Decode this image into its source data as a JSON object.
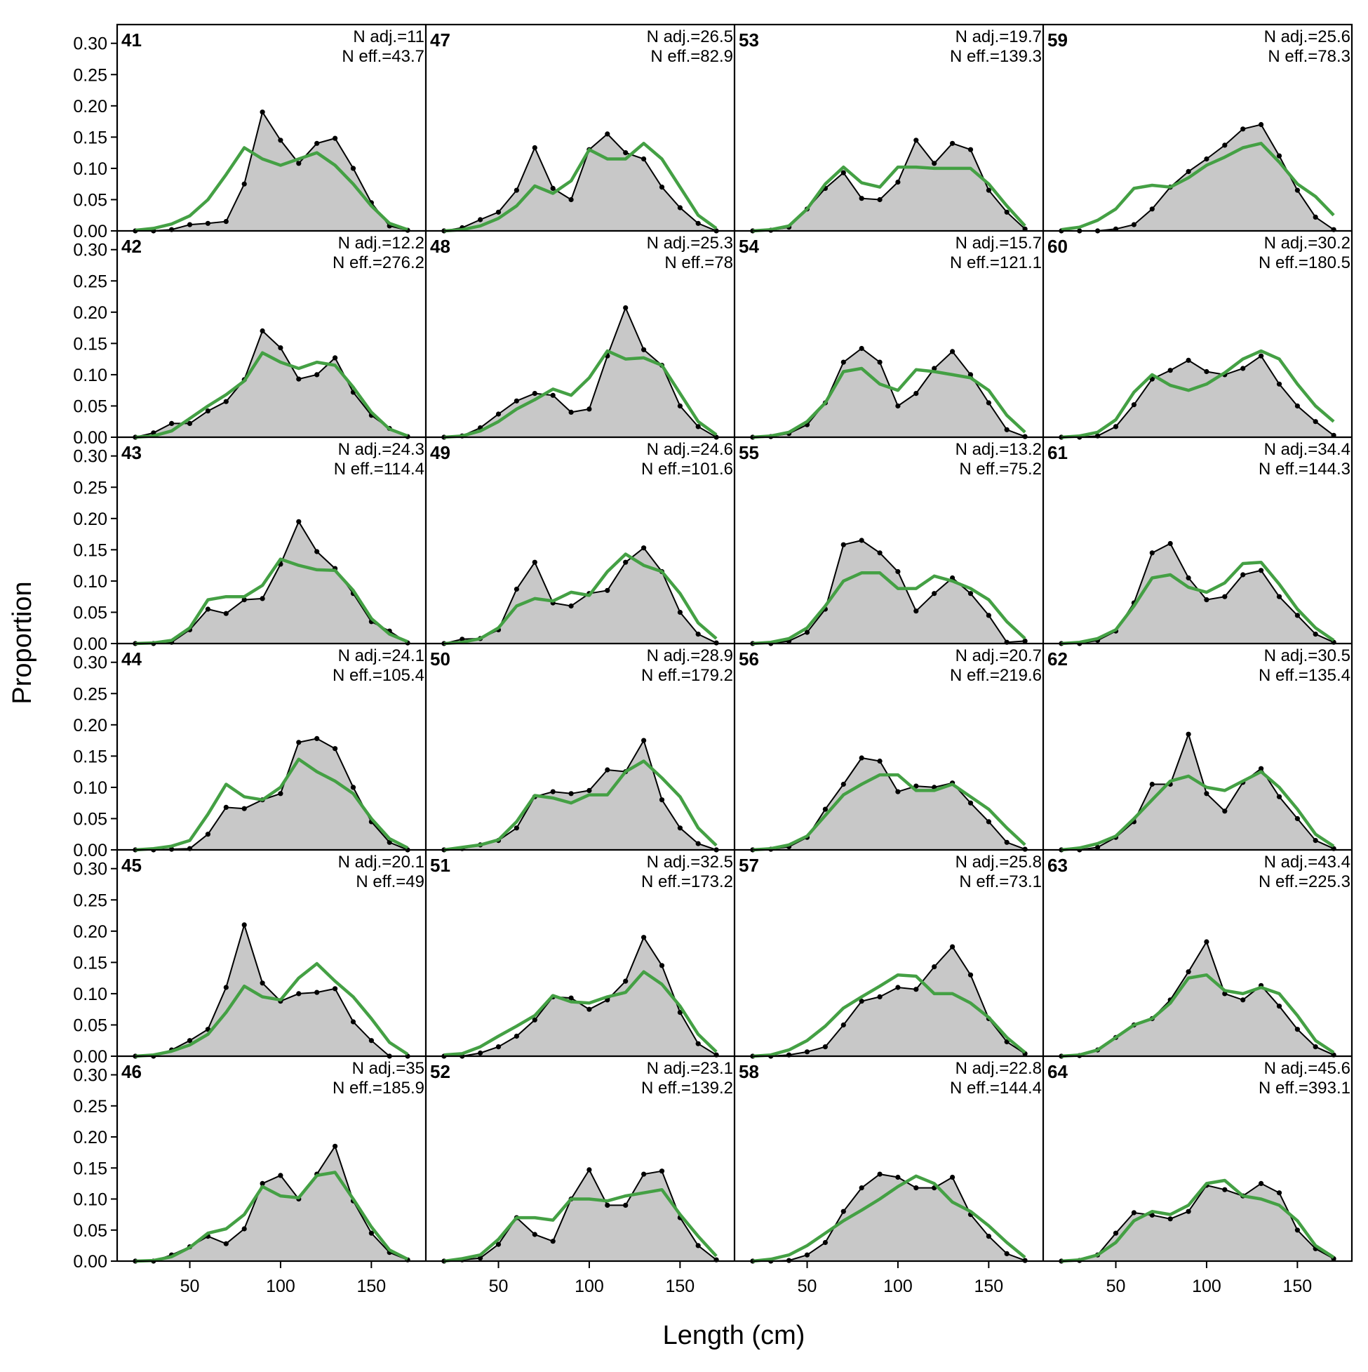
{
  "chart_data": {
    "type": "area",
    "xlabel": "Length (cm)",
    "ylabel": "Proportion",
    "xlim": [
      10,
      180
    ],
    "ylim": [
      0,
      0.33
    ],
    "x_ticks": [
      50,
      100,
      150
    ],
    "y_ticks": [
      0.0,
      0.05,
      0.1,
      0.15,
      0.2,
      0.25,
      0.3
    ],
    "y_tick_labels": [
      "0.00",
      "0.05",
      "0.10",
      "0.15",
      "0.20",
      "0.25",
      "0.30"
    ],
    "x_tick_labels": [
      "50",
      "100",
      "150"
    ],
    "layout": {
      "columns": 4,
      "rows": 6
    },
    "colors": {
      "observed_fill": "#c8c8c8",
      "observed_line": "#000000",
      "expected_line": "#44a044",
      "baseline": "#a8a8a8"
    },
    "x": [
      20,
      30,
      40,
      50,
      60,
      70,
      80,
      90,
      100,
      110,
      120,
      130,
      140,
      150,
      160,
      170
    ],
    "panels": [
      {
        "id": "41",
        "n_adj": "N adj.=11",
        "n_eff": "N eff.=43.7",
        "observed": [
          0,
          0,
          0.002,
          0.01,
          0.012,
          0.015,
          0.075,
          0.19,
          0.145,
          0.108,
          0.14,
          0.148,
          0.1,
          0.045,
          0.008,
          0.001
        ],
        "expected": [
          0.001,
          0.004,
          0.011,
          0.024,
          0.05,
          0.09,
          0.133,
          0.115,
          0.105,
          0.115,
          0.125,
          0.105,
          0.075,
          0.04,
          0.012,
          0.002
        ]
      },
      {
        "id": "42",
        "n_adj": "N adj.=12.2",
        "n_eff": "N eff.=276.2",
        "observed": [
          0.0,
          0.007,
          0.022,
          0.022,
          0.042,
          0.057,
          0.092,
          0.17,
          0.143,
          0.093,
          0.1,
          0.127,
          0.072,
          0.035,
          0.014,
          0.001
        ],
        "expected": [
          0.0,
          0.002,
          0.01,
          0.03,
          0.05,
          0.068,
          0.09,
          0.135,
          0.12,
          0.11,
          0.12,
          0.115,
          0.08,
          0.04,
          0.013,
          0.002
        ]
      },
      {
        "id": "43",
        "n_adj": "N adj.=24.3",
        "n_eff": "N eff.=114.4",
        "observed": [
          0.0,
          0.0,
          0.002,
          0.022,
          0.055,
          0.048,
          0.07,
          0.072,
          0.127,
          0.195,
          0.147,
          0.12,
          0.08,
          0.035,
          0.02,
          0.001
        ],
        "expected": [
          0.0,
          0.001,
          0.005,
          0.025,
          0.07,
          0.075,
          0.075,
          0.093,
          0.135,
          0.125,
          0.118,
          0.117,
          0.085,
          0.04,
          0.015,
          0.003
        ]
      },
      {
        "id": "44",
        "n_adj": "N adj.=24.1",
        "n_eff": "N eff.=105.4",
        "observed": [
          0.0,
          0.0,
          0.001,
          0.002,
          0.025,
          0.068,
          0.066,
          0.08,
          0.09,
          0.172,
          0.178,
          0.162,
          0.1,
          0.045,
          0.012,
          0.0
        ],
        "expected": [
          0.0,
          0.002,
          0.006,
          0.015,
          0.057,
          0.105,
          0.085,
          0.08,
          0.1,
          0.145,
          0.125,
          0.11,
          0.09,
          0.05,
          0.018,
          0.003
        ]
      },
      {
        "id": "45",
        "n_adj": "N adj.=20.1",
        "n_eff": "N eff.=49",
        "observed": [
          0.0,
          0.0,
          0.01,
          0.025,
          0.043,
          0.11,
          0.21,
          0.117,
          0.088,
          0.1,
          0.102,
          0.108,
          0.055,
          0.025,
          0.0,
          0.0
        ],
        "expected": [
          0.0,
          0.002,
          0.008,
          0.018,
          0.035,
          0.07,
          0.112,
          0.095,
          0.09,
          0.125,
          0.148,
          0.12,
          0.095,
          0.06,
          0.022,
          0.003
        ]
      },
      {
        "id": "46",
        "n_adj": "N adj.=35",
        "n_eff": "N eff.=185.9",
        "observed": [
          0.0,
          0.0,
          0.01,
          0.023,
          0.04,
          0.028,
          0.052,
          0.125,
          0.138,
          0.1,
          0.14,
          0.185,
          0.097,
          0.045,
          0.014,
          0.002
        ],
        "expected": [
          0.0,
          0.001,
          0.007,
          0.022,
          0.045,
          0.052,
          0.075,
          0.12,
          0.105,
          0.102,
          0.138,
          0.143,
          0.1,
          0.055,
          0.018,
          0.003
        ]
      },
      {
        "id": "47",
        "n_adj": "N adj.=26.5",
        "n_eff": "N eff.=82.9",
        "observed": [
          0.0,
          0.005,
          0.018,
          0.03,
          0.065,
          0.133,
          0.068,
          0.05,
          0.13,
          0.155,
          0.125,
          0.115,
          0.07,
          0.037,
          0.012,
          0.0
        ],
        "expected": [
          0.0,
          0.002,
          0.008,
          0.02,
          0.04,
          0.072,
          0.06,
          0.08,
          0.13,
          0.115,
          0.115,
          0.14,
          0.115,
          0.07,
          0.025,
          0.004
        ]
      },
      {
        "id": "48",
        "n_adj": "N adj.=25.3",
        "n_eff": "N eff.=78",
        "observed": [
          0.0,
          0.002,
          0.015,
          0.037,
          0.058,
          0.07,
          0.067,
          0.04,
          0.045,
          0.13,
          0.207,
          0.14,
          0.115,
          0.05,
          0.017,
          0.0
        ],
        "expected": [
          0.0,
          0.002,
          0.01,
          0.025,
          0.045,
          0.06,
          0.077,
          0.067,
          0.095,
          0.138,
          0.125,
          0.127,
          0.115,
          0.07,
          0.025,
          0.004
        ]
      },
      {
        "id": "49",
        "n_adj": "N adj.=24.6",
        "n_eff": "N eff.=101.6",
        "observed": [
          0.0,
          0.007,
          0.008,
          0.022,
          0.087,
          0.13,
          0.065,
          0.06,
          0.08,
          0.085,
          0.13,
          0.153,
          0.115,
          0.05,
          0.015,
          0.001
        ],
        "expected": [
          0.0,
          0.002,
          0.008,
          0.025,
          0.06,
          0.072,
          0.068,
          0.082,
          0.077,
          0.115,
          0.143,
          0.125,
          0.115,
          0.08,
          0.033,
          0.008
        ]
      },
      {
        "id": "50",
        "n_adj": "N adj.=28.9",
        "n_eff": "N eff.=179.2",
        "observed": [
          0.0,
          0.002,
          0.008,
          0.015,
          0.035,
          0.085,
          0.093,
          0.09,
          0.095,
          0.128,
          0.125,
          0.175,
          0.08,
          0.035,
          0.01,
          0.0
        ],
        "expected": [
          0.0,
          0.004,
          0.008,
          0.016,
          0.045,
          0.087,
          0.083,
          0.075,
          0.088,
          0.088,
          0.125,
          0.142,
          0.115,
          0.085,
          0.035,
          0.007
        ]
      },
      {
        "id": "51",
        "n_adj": "N adj.=32.5",
        "n_eff": "N eff.=173.2",
        "observed": [
          0.0,
          0.0,
          0.005,
          0.015,
          0.032,
          0.058,
          0.095,
          0.093,
          0.075,
          0.09,
          0.12,
          0.19,
          0.145,
          0.07,
          0.02,
          0.002
        ],
        "expected": [
          0.002,
          0.004,
          0.015,
          0.032,
          0.048,
          0.065,
          0.097,
          0.087,
          0.085,
          0.095,
          0.102,
          0.135,
          0.115,
          0.08,
          0.035,
          0.007
        ]
      },
      {
        "id": "52",
        "n_adj": "N adj.=23.1",
        "n_eff": "N eff.=139.2",
        "observed": [
          0.0,
          0.002,
          0.005,
          0.027,
          0.07,
          0.043,
          0.032,
          0.1,
          0.147,
          0.09,
          0.09,
          0.14,
          0.145,
          0.07,
          0.025,
          0.002
        ],
        "expected": [
          0.0,
          0.004,
          0.01,
          0.035,
          0.07,
          0.07,
          0.066,
          0.1,
          0.1,
          0.097,
          0.105,
          0.11,
          0.115,
          0.075,
          0.04,
          0.008
        ]
      },
      {
        "id": "53",
        "n_adj": "N adj.=19.7",
        "n_eff": "N eff.=139.3",
        "observed": [
          0.0,
          0.001,
          0.006,
          0.035,
          0.068,
          0.093,
          0.052,
          0.05,
          0.078,
          0.145,
          0.108,
          0.14,
          0.13,
          0.065,
          0.03,
          0.003
        ],
        "expected": [
          0.0,
          0.002,
          0.008,
          0.035,
          0.075,
          0.102,
          0.077,
          0.07,
          0.102,
          0.102,
          0.1,
          0.1,
          0.1,
          0.075,
          0.04,
          0.008
        ]
      },
      {
        "id": "54",
        "n_adj": "N adj.=15.7",
        "n_eff": "N eff.=121.1",
        "observed": [
          0.0,
          0.001,
          0.006,
          0.02,
          0.055,
          0.12,
          0.142,
          0.12,
          0.05,
          0.07,
          0.11,
          0.137,
          0.1,
          0.055,
          0.012,
          0.001
        ],
        "expected": [
          0.0,
          0.002,
          0.008,
          0.025,
          0.055,
          0.105,
          0.11,
          0.085,
          0.075,
          0.108,
          0.105,
          0.1,
          0.095,
          0.075,
          0.035,
          0.008
        ]
      },
      {
        "id": "55",
        "n_adj": "N adj.=13.2",
        "n_eff": "N eff.=75.2",
        "observed": [
          0.0,
          0.0,
          0.004,
          0.018,
          0.055,
          0.158,
          0.165,
          0.145,
          0.115,
          0.052,
          0.08,
          0.105,
          0.08,
          0.045,
          0.002,
          0.004
        ],
        "expected": [
          0.0,
          0.002,
          0.008,
          0.025,
          0.06,
          0.1,
          0.113,
          0.113,
          0.088,
          0.088,
          0.108,
          0.1,
          0.088,
          0.07,
          0.035,
          0.008
        ]
      },
      {
        "id": "56",
        "n_adj": "N adj.=20.7",
        "n_eff": "N eff.=219.6",
        "observed": [
          0.0,
          0.001,
          0.005,
          0.02,
          0.065,
          0.105,
          0.147,
          0.142,
          0.093,
          0.102,
          0.1,
          0.107,
          0.075,
          0.045,
          0.012,
          0.001
        ],
        "expected": [
          0.0,
          0.002,
          0.008,
          0.022,
          0.055,
          0.088,
          0.105,
          0.12,
          0.12,
          0.095,
          0.095,
          0.105,
          0.085,
          0.065,
          0.035,
          0.008
        ]
      },
      {
        "id": "57",
        "n_adj": "N adj.=25.8",
        "n_eff": "N eff.=73.1",
        "observed": [
          0.0,
          0.0,
          0.002,
          0.007,
          0.015,
          0.05,
          0.088,
          0.095,
          0.11,
          0.107,
          0.143,
          0.175,
          0.13,
          0.06,
          0.023,
          0.004
        ],
        "expected": [
          0.0,
          0.002,
          0.01,
          0.025,
          0.048,
          0.077,
          0.095,
          0.112,
          0.13,
          0.128,
          0.1,
          0.1,
          0.085,
          0.062,
          0.03,
          0.006
        ]
      },
      {
        "id": "58",
        "n_adj": "N adj.=22.8",
        "n_eff": "N eff.=144.4",
        "observed": [
          0.0,
          0.0,
          0.001,
          0.01,
          0.03,
          0.08,
          0.118,
          0.14,
          0.135,
          0.118,
          0.118,
          0.135,
          0.075,
          0.04,
          0.012,
          0.001
        ],
        "expected": [
          0.0,
          0.003,
          0.01,
          0.025,
          0.045,
          0.065,
          0.082,
          0.1,
          0.12,
          0.137,
          0.125,
          0.095,
          0.08,
          0.057,
          0.03,
          0.006
        ]
      },
      {
        "id": "59",
        "n_adj": "N adj.=25.6",
        "n_eff": "N eff.=78.3",
        "observed": [
          0.0,
          0.0,
          0.0,
          0.003,
          0.01,
          0.035,
          0.07,
          0.095,
          0.115,
          0.137,
          0.163,
          0.17,
          0.12,
          0.065,
          0.022,
          0.002
        ],
        "expected": [
          0.002,
          0.006,
          0.017,
          0.035,
          0.068,
          0.073,
          0.07,
          0.085,
          0.105,
          0.118,
          0.133,
          0.14,
          0.11,
          0.075,
          0.055,
          0.025
        ]
      },
      {
        "id": "60",
        "n_adj": "N adj.=30.2",
        "n_eff": "N eff.=180.5",
        "observed": [
          0.0,
          0.0,
          0.002,
          0.017,
          0.052,
          0.093,
          0.107,
          0.123,
          0.105,
          0.1,
          0.11,
          0.13,
          0.085,
          0.05,
          0.025,
          0.003
        ],
        "expected": [
          0.0,
          0.002,
          0.008,
          0.028,
          0.072,
          0.1,
          0.083,
          0.075,
          0.085,
          0.103,
          0.125,
          0.138,
          0.125,
          0.085,
          0.05,
          0.025
        ]
      },
      {
        "id": "61",
        "n_adj": "N adj.=34.4",
        "n_eff": "N eff.=144.3",
        "observed": [
          0.0,
          0.0,
          0.005,
          0.02,
          0.065,
          0.145,
          0.16,
          0.105,
          0.07,
          0.075,
          0.11,
          0.117,
          0.075,
          0.045,
          0.015,
          0.002
        ],
        "expected": [
          0.0,
          0.002,
          0.008,
          0.022,
          0.06,
          0.105,
          0.11,
          0.09,
          0.082,
          0.097,
          0.128,
          0.13,
          0.095,
          0.055,
          0.025,
          0.005
        ]
      },
      {
        "id": "62",
        "n_adj": "N adj.=30.5",
        "n_eff": "N eff.=135.4",
        "observed": [
          0.0,
          0.0,
          0.004,
          0.02,
          0.045,
          0.105,
          0.105,
          0.185,
          0.09,
          0.062,
          0.108,
          0.13,
          0.085,
          0.05,
          0.015,
          0.002
        ],
        "expected": [
          0.0,
          0.003,
          0.01,
          0.022,
          0.05,
          0.08,
          0.11,
          0.118,
          0.1,
          0.095,
          0.11,
          0.125,
          0.1,
          0.065,
          0.025,
          0.006
        ]
      },
      {
        "id": "63",
        "n_adj": "N adj.=43.4",
        "n_eff": "N eff.=225.3",
        "observed": [
          0.0,
          0.001,
          0.01,
          0.03,
          0.05,
          0.06,
          0.09,
          0.135,
          0.183,
          0.1,
          0.09,
          0.113,
          0.08,
          0.043,
          0.015,
          0.002
        ],
        "expected": [
          0.0,
          0.002,
          0.01,
          0.03,
          0.05,
          0.06,
          0.085,
          0.125,
          0.13,
          0.105,
          0.1,
          0.11,
          0.1,
          0.065,
          0.025,
          0.006
        ]
      },
      {
        "id": "64",
        "n_adj": "N adj.=45.6",
        "n_eff": "N eff.=393.1",
        "observed": [
          0.0,
          0.001,
          0.01,
          0.045,
          0.078,
          0.074,
          0.068,
          0.08,
          0.122,
          0.115,
          0.105,
          0.125,
          0.11,
          0.05,
          0.02,
          0.004
        ],
        "expected": [
          0.0,
          0.002,
          0.01,
          0.03,
          0.065,
          0.08,
          0.075,
          0.09,
          0.125,
          0.13,
          0.105,
          0.1,
          0.09,
          0.065,
          0.025,
          0.006
        ]
      }
    ]
  }
}
